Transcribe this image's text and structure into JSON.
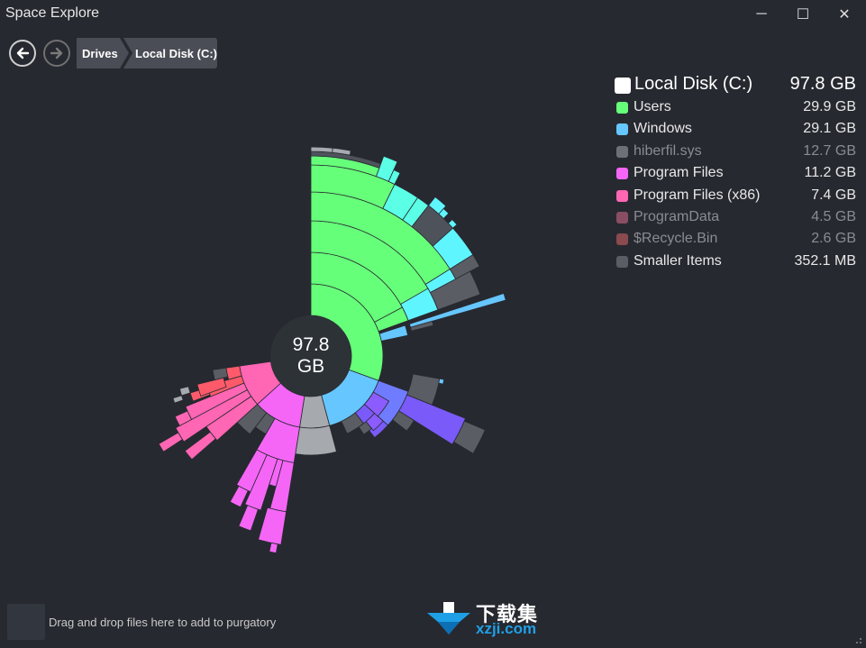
{
  "window": {
    "title": "Space Explore",
    "minimize_symbol": "─",
    "maximize_symbol": "☐",
    "close_symbol": "✕"
  },
  "nav": {
    "back_icon": "arrow-left-icon",
    "forward_icon": "arrow-right-icon",
    "breadcrumbs": [
      "Drives",
      "Local Disk (C:)"
    ]
  },
  "center": {
    "size_value": "97.8",
    "size_unit": "GB"
  },
  "legend": {
    "root": {
      "label": "Local Disk (C:)",
      "value": "97.8 GB",
      "color": "#ffffff"
    },
    "items": [
      {
        "label": "Users",
        "value": "29.9 GB",
        "color": "#66ff7a",
        "dim": false
      },
      {
        "label": "Windows",
        "value": "29.1 GB",
        "color": "#66c6ff",
        "dim": false
      },
      {
        "label": "hiberfil.sys",
        "value": "12.7 GB",
        "color": "#6e7075",
        "dim": true
      },
      {
        "label": "Program Files",
        "value": "11.2 GB",
        "color": "#f566f7",
        "dim": false
      },
      {
        "label": "Program Files (x86)",
        "value": "7.4 GB",
        "color": "#ff66b4",
        "dim": false
      },
      {
        "label": "ProgramData",
        "value": "4.5 GB",
        "color": "#8a4e64",
        "dim": true
      },
      {
        "label": "$Recycle.Bin",
        "value": "2.6 GB",
        "color": "#8a4a4e",
        "dim": true
      },
      {
        "label": "Smaller Items",
        "value": "352.1 MB",
        "color": "#5a5e64",
        "dim": false
      }
    ]
  },
  "footer": {
    "drop_text": "Drag and drop files here to add to purgatory"
  },
  "watermark": {
    "cn_text": "下载集",
    "domain": "xzji.com"
  }
}
